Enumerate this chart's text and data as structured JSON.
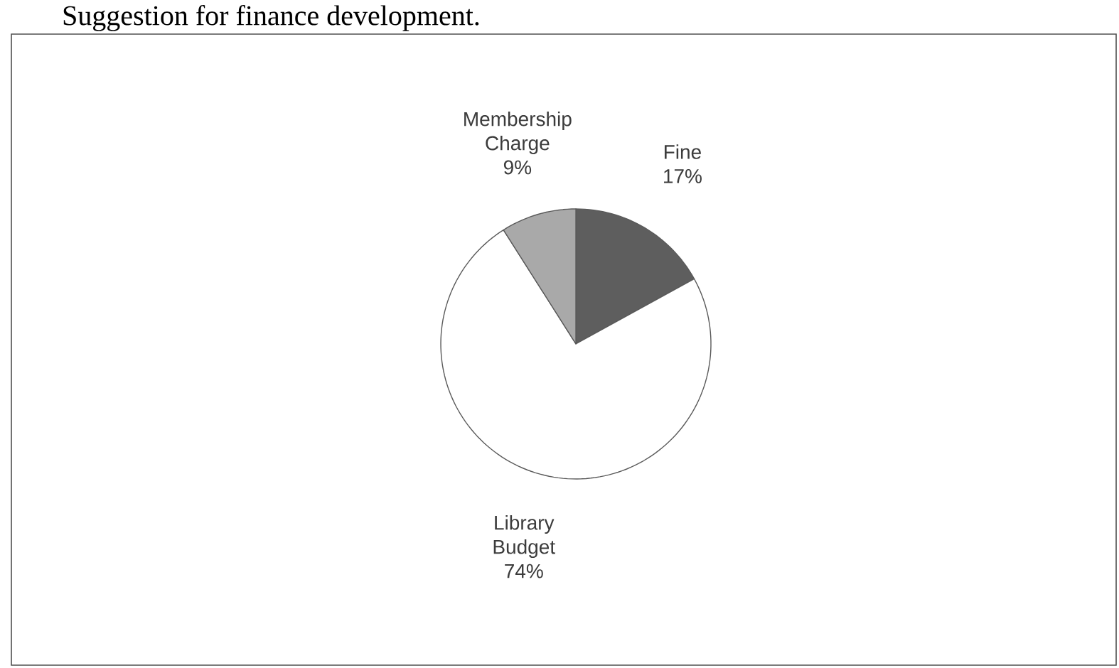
{
  "chart_data": {
    "type": "pie",
    "title": "Suggestion for finance development.",
    "categories": [
      "Fine",
      "Library Budget",
      "Membership Charge"
    ],
    "values": [
      17,
      74,
      9
    ],
    "value_labels": [
      "17%",
      "74%",
      "9%"
    ],
    "colors": [
      "#5e5e5e",
      "#ffffff",
      "#a9a9a9"
    ]
  }
}
